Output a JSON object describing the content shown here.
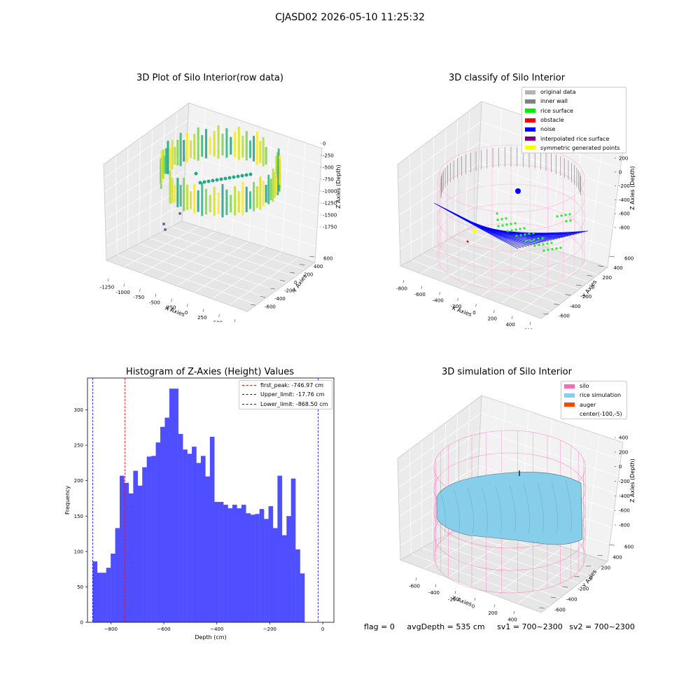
{
  "suptitle": "CJASD02 2026-05-10 11:25:32",
  "panels": {
    "raw": {
      "title": "3D Plot of Silo Interior(row data)",
      "xlabel": "X Axies",
      "ylabel": "Y Axies",
      "zlabel": "Z Axies (Depth)",
      "xticks": [
        "-1250",
        "-1000",
        "-750",
        "-500",
        "-250",
        "0",
        "250",
        "500",
        "750"
      ],
      "yticks": [
        "-600",
        "-400",
        "-200",
        "0",
        "200",
        "400",
        "600"
      ],
      "zticks": [
        "0",
        "-250",
        "-500",
        "-750",
        "-1000",
        "-1250",
        "-1500",
        "-1750"
      ]
    },
    "classify": {
      "title": "3D classify of Silo Interior",
      "xlabel": "X Axies",
      "ylabel": "Y Axies",
      "zlabel": "Z Axies (Depth)",
      "xticks": [
        "-800",
        "-600",
        "-400",
        "-200",
        "0",
        "200",
        "400",
        "600"
      ],
      "yticks": [
        "-600",
        "-400",
        "-200",
        "0",
        "200",
        "400",
        "600"
      ],
      "zticks": [
        "200",
        "0",
        "-200",
        "-400",
        "-600",
        "-800"
      ],
      "zticks_partial": [
        "00",
        "00"
      ],
      "legend": [
        {
          "label": "original data",
          "color": "#b4b4b4"
        },
        {
          "label": "inner wall",
          "color": "#808080"
        },
        {
          "label": "rice surface",
          "color": "#00ee00"
        },
        {
          "label": "obstacle",
          "color": "#ff0000"
        },
        {
          "label": "noise",
          "color": "#0000ff"
        },
        {
          "label": "interpolated rice surface",
          "color": "#800080"
        },
        {
          "label": "symmetric generated points",
          "color": "#ffff00"
        }
      ]
    },
    "simulation": {
      "title": "3D simulation of Silo Interior",
      "xlabel": "X Axies",
      "ylabel": "Y Axies",
      "zlabel": "Z Axies (Depth)",
      "xticks": [
        "-600",
        "-400",
        "-200",
        "0",
        "200",
        "400"
      ],
      "yticks": [
        "-600",
        "-400",
        "-200",
        "0",
        "200",
        "400",
        "600"
      ],
      "zticks": [
        "400",
        "200",
        "0",
        "-200",
        "-400",
        "-600",
        "-800"
      ],
      "legend": [
        {
          "label": "silo",
          "color": "#ff69b4"
        },
        {
          "label": "rice simulation",
          "color": "#87ceeb"
        },
        {
          "label": "auger",
          "color": "#ff4500"
        },
        {
          "label": "center(-100,-5)",
          "color": ""
        }
      ]
    },
    "flags": {
      "flag": "flag = 0",
      "avg": "avgDepth = 535 cm",
      "sv1": "sv1 = 700~2300",
      "sv2": "sv2 = 700~2300"
    }
  },
  "chart_data": [
    {
      "type": "bar",
      "title": "Histogram of Z-Axies (Height) Values",
      "xlabel": "Depth (cm)",
      "ylabel": "Frequency",
      "xlim": [
        -888,
        42
      ],
      "ylim": [
        0,
        345
      ],
      "xticks": [
        -800,
        -600,
        -400,
        -200,
        0
      ],
      "yticks": [
        0,
        50,
        100,
        150,
        200,
        250,
        300
      ],
      "bar_color": "#4b4bff",
      "bin_start": -868.5,
      "bin_width": 17.0143,
      "values": [
        86,
        70,
        70,
        77,
        97,
        133,
        207,
        197,
        182,
        214,
        193,
        219,
        234,
        235,
        254,
        276,
        289,
        330,
        330,
        266,
        244,
        238,
        248,
        225,
        235,
        206,
        262,
        170,
        170,
        166,
        161,
        166,
        161,
        166,
        154,
        152,
        153,
        160,
        146,
        164,
        133,
        207,
        123,
        150,
        203,
        103,
        69
      ],
      "lines": [
        {
          "label": "first_peak: -746.97 cm",
          "x": -746.97,
          "color": "#ff0000"
        },
        {
          "label": "Upper_limit: -17.76 cm",
          "x": -17.76,
          "color": "#0000ff"
        },
        {
          "label": "Lower_limit: -868.50 cm",
          "x": -868.5,
          "color": "#0000ff"
        }
      ],
      "black_line_x": -868.5,
      "black_line_x2": -17.76
    }
  ]
}
